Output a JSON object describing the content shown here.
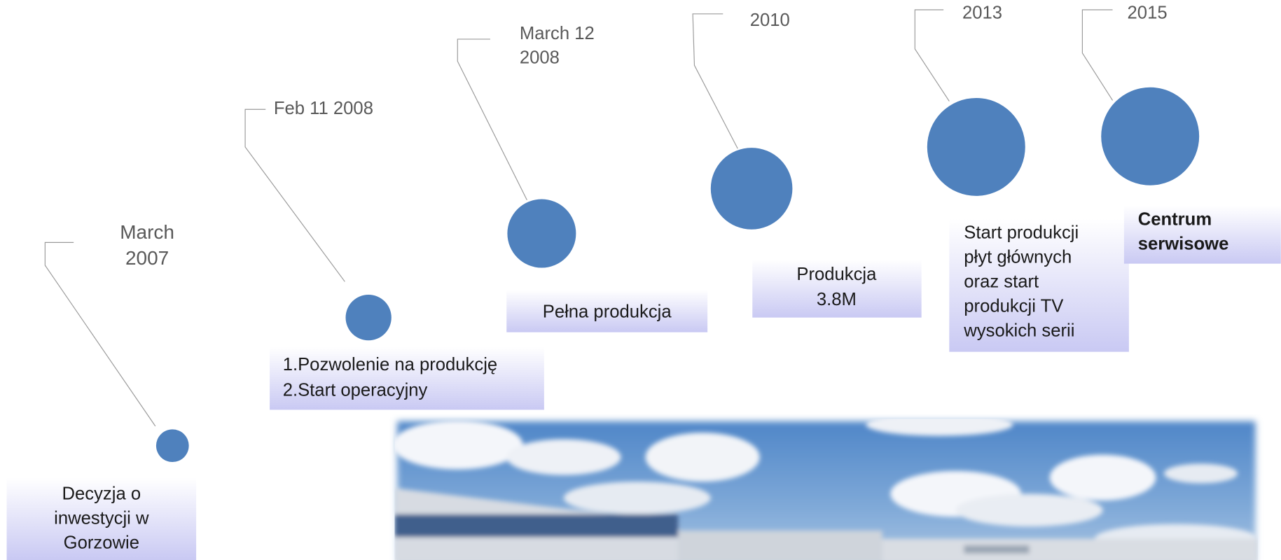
{
  "milestones": [
    {
      "date": [
        "March",
        "2007"
      ],
      "label": [
        "Decyzja o",
        "inwestycji w",
        "Gorzowie"
      ]
    },
    {
      "date": [
        "Feb 11  2008"
      ],
      "label": [
        "1.Pozwolenie na produkcję",
        "2.Start operacyjny"
      ]
    },
    {
      "date": [
        "March 12",
        "2008"
      ],
      "label": [
        "Pełna produkcja"
      ]
    },
    {
      "date": [
        "2010"
      ],
      "label": [
        "Produkcja",
        "3.8M"
      ]
    },
    {
      "date": [
        "2013"
      ],
      "label": [
        "Start produkcji",
        "płyt głównych",
        "oraz start",
        "produkcji TV",
        "wysokich serii"
      ]
    },
    {
      "date": [
        "2015"
      ],
      "label": [
        "Centrum",
        "serwisowe"
      ]
    }
  ]
}
